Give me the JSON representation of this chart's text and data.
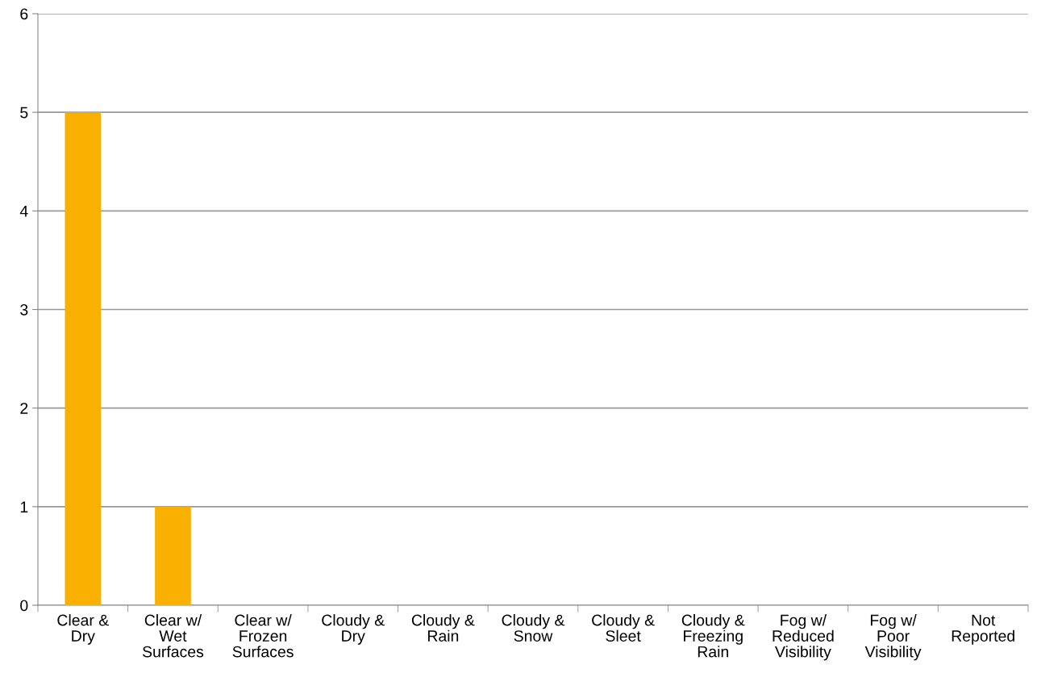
{
  "chart_data": {
    "type": "bar",
    "categories": [
      "Clear & Dry",
      "Clear w/ Wet Surfaces",
      "Clear w/ Frozen Surfaces",
      "Cloudy & Dry",
      "Cloudy & Rain",
      "Cloudy & Snow",
      "Cloudy & Sleet",
      "Cloudy & Freezing Rain",
      "Fog w/ Reduced Visibility",
      "Fog w/ Poor Visibility",
      "Not Reported"
    ],
    "values": [
      5,
      1,
      0,
      0,
      0,
      0,
      0,
      0,
      0,
      0,
      0
    ],
    "color": "#f9b000",
    "ylim": [
      0,
      6
    ],
    "yticks": [
      0,
      1,
      2,
      3,
      4,
      5,
      6
    ],
    "grid": "y",
    "legend": false
  }
}
